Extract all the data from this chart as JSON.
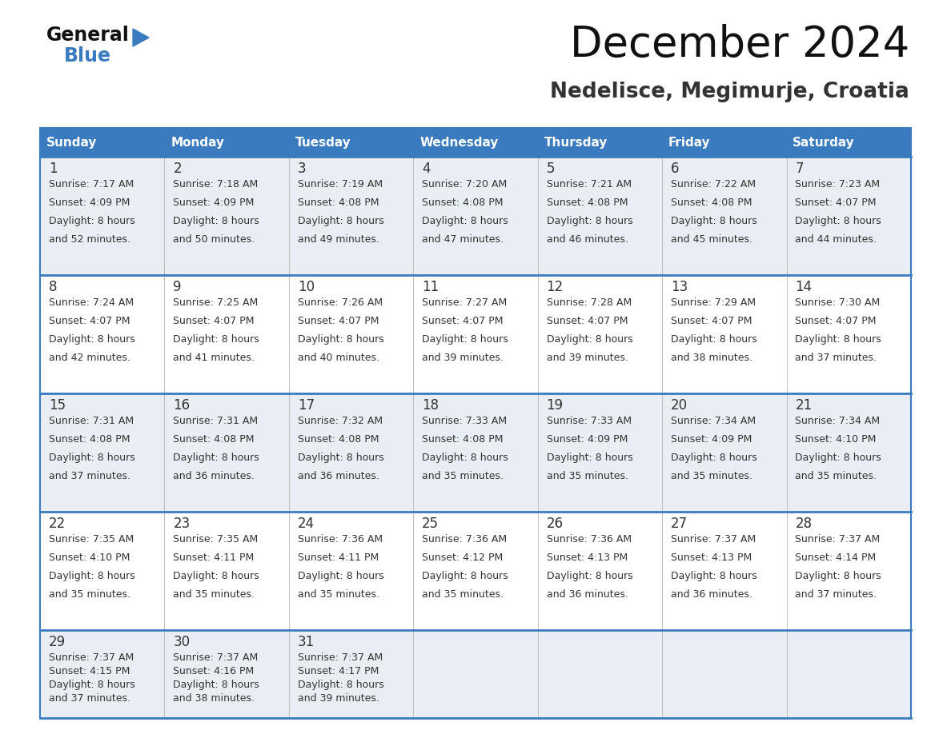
{
  "title": "December 2024",
  "subtitle": "Nedelisce, Megimurje, Croatia",
  "days_of_week": [
    "Sunday",
    "Monday",
    "Tuesday",
    "Wednesday",
    "Thursday",
    "Friday",
    "Saturday"
  ],
  "header_bg": "#3a7bbf",
  "header_text": "#ffffff",
  "row_bg_odd": "#e8eef4",
  "row_bg_even": "#ffffff",
  "cell_border_color": "#3a7bbf",
  "cell_divider_color": "#cccccc",
  "day_num_color": "#333333",
  "info_color": "#333333",
  "title_color": "#111111",
  "subtitle_color": "#333333",
  "logo_general_color": "#111111",
  "logo_blue_color": "#3a7bbf",
  "calendar_data": [
    [
      {
        "day": 1,
        "sunrise": "7:17 AM",
        "sunset": "4:09 PM",
        "daylight_h": "8 hours",
        "daylight_m": "and 52 minutes."
      },
      {
        "day": 2,
        "sunrise": "7:18 AM",
        "sunset": "4:09 PM",
        "daylight_h": "8 hours",
        "daylight_m": "and 50 minutes."
      },
      {
        "day": 3,
        "sunrise": "7:19 AM",
        "sunset": "4:08 PM",
        "daylight_h": "8 hours",
        "daylight_m": "and 49 minutes."
      },
      {
        "day": 4,
        "sunrise": "7:20 AM",
        "sunset": "4:08 PM",
        "daylight_h": "8 hours",
        "daylight_m": "and 47 minutes."
      },
      {
        "day": 5,
        "sunrise": "7:21 AM",
        "sunset": "4:08 PM",
        "daylight_h": "8 hours",
        "daylight_m": "and 46 minutes."
      },
      {
        "day": 6,
        "sunrise": "7:22 AM",
        "sunset": "4:08 PM",
        "daylight_h": "8 hours",
        "daylight_m": "and 45 minutes."
      },
      {
        "day": 7,
        "sunrise": "7:23 AM",
        "sunset": "4:07 PM",
        "daylight_h": "8 hours",
        "daylight_m": "and 44 minutes."
      }
    ],
    [
      {
        "day": 8,
        "sunrise": "7:24 AM",
        "sunset": "4:07 PM",
        "daylight_h": "8 hours",
        "daylight_m": "and 42 minutes."
      },
      {
        "day": 9,
        "sunrise": "7:25 AM",
        "sunset": "4:07 PM",
        "daylight_h": "8 hours",
        "daylight_m": "and 41 minutes."
      },
      {
        "day": 10,
        "sunrise": "7:26 AM",
        "sunset": "4:07 PM",
        "daylight_h": "8 hours",
        "daylight_m": "and 40 minutes."
      },
      {
        "day": 11,
        "sunrise": "7:27 AM",
        "sunset": "4:07 PM",
        "daylight_h": "8 hours",
        "daylight_m": "and 39 minutes."
      },
      {
        "day": 12,
        "sunrise": "7:28 AM",
        "sunset": "4:07 PM",
        "daylight_h": "8 hours",
        "daylight_m": "and 39 minutes."
      },
      {
        "day": 13,
        "sunrise": "7:29 AM",
        "sunset": "4:07 PM",
        "daylight_h": "8 hours",
        "daylight_m": "and 38 minutes."
      },
      {
        "day": 14,
        "sunrise": "7:30 AM",
        "sunset": "4:07 PM",
        "daylight_h": "8 hours",
        "daylight_m": "and 37 minutes."
      }
    ],
    [
      {
        "day": 15,
        "sunrise": "7:31 AM",
        "sunset": "4:08 PM",
        "daylight_h": "8 hours",
        "daylight_m": "and 37 minutes."
      },
      {
        "day": 16,
        "sunrise": "7:31 AM",
        "sunset": "4:08 PM",
        "daylight_h": "8 hours",
        "daylight_m": "and 36 minutes."
      },
      {
        "day": 17,
        "sunrise": "7:32 AM",
        "sunset": "4:08 PM",
        "daylight_h": "8 hours",
        "daylight_m": "and 36 minutes."
      },
      {
        "day": 18,
        "sunrise": "7:33 AM",
        "sunset": "4:08 PM",
        "daylight_h": "8 hours",
        "daylight_m": "and 35 minutes."
      },
      {
        "day": 19,
        "sunrise": "7:33 AM",
        "sunset": "4:09 PM",
        "daylight_h": "8 hours",
        "daylight_m": "and 35 minutes."
      },
      {
        "day": 20,
        "sunrise": "7:34 AM",
        "sunset": "4:09 PM",
        "daylight_h": "8 hours",
        "daylight_m": "and 35 minutes."
      },
      {
        "day": 21,
        "sunrise": "7:34 AM",
        "sunset": "4:10 PM",
        "daylight_h": "8 hours",
        "daylight_m": "and 35 minutes."
      }
    ],
    [
      {
        "day": 22,
        "sunrise": "7:35 AM",
        "sunset": "4:10 PM",
        "daylight_h": "8 hours",
        "daylight_m": "and 35 minutes."
      },
      {
        "day": 23,
        "sunrise": "7:35 AM",
        "sunset": "4:11 PM",
        "daylight_h": "8 hours",
        "daylight_m": "and 35 minutes."
      },
      {
        "day": 24,
        "sunrise": "7:36 AM",
        "sunset": "4:11 PM",
        "daylight_h": "8 hours",
        "daylight_m": "and 35 minutes."
      },
      {
        "day": 25,
        "sunrise": "7:36 AM",
        "sunset": "4:12 PM",
        "daylight_h": "8 hours",
        "daylight_m": "and 35 minutes."
      },
      {
        "day": 26,
        "sunrise": "7:36 AM",
        "sunset": "4:13 PM",
        "daylight_h": "8 hours",
        "daylight_m": "and 36 minutes."
      },
      {
        "day": 27,
        "sunrise": "7:37 AM",
        "sunset": "4:13 PM",
        "daylight_h": "8 hours",
        "daylight_m": "and 36 minutes."
      },
      {
        "day": 28,
        "sunrise": "7:37 AM",
        "sunset": "4:14 PM",
        "daylight_h": "8 hours",
        "daylight_m": "and 37 minutes."
      }
    ],
    [
      {
        "day": 29,
        "sunrise": "7:37 AM",
        "sunset": "4:15 PM",
        "daylight_h": "8 hours",
        "daylight_m": "and 37 minutes."
      },
      {
        "day": 30,
        "sunrise": "7:37 AM",
        "sunset": "4:16 PM",
        "daylight_h": "8 hours",
        "daylight_m": "and 38 minutes."
      },
      {
        "day": 31,
        "sunrise": "7:37 AM",
        "sunset": "4:17 PM",
        "daylight_h": "8 hours",
        "daylight_m": "and 39 minutes."
      },
      null,
      null,
      null,
      null
    ]
  ]
}
